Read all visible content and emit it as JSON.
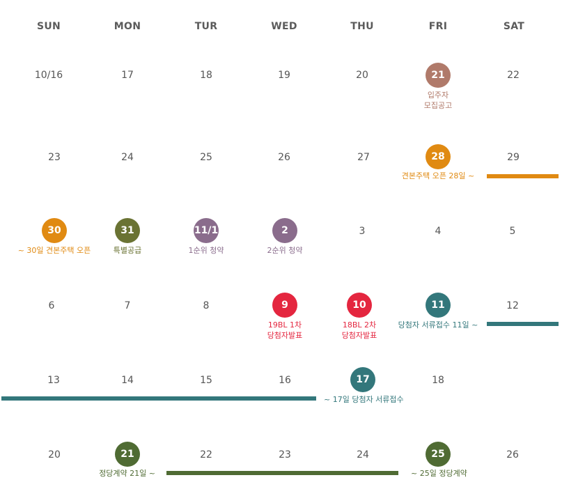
{
  "colors": {
    "brown": "#b07a6a",
    "orange": "#e08a12",
    "olive": "#6a7333",
    "purple": "#8a6c8c",
    "red": "#e4263f",
    "teal": "#33777b",
    "green": "#4f6b33"
  },
  "weekdays": [
    "SUN",
    "MON",
    "TUR",
    "WED",
    "THU",
    "FRI",
    "SAT"
  ],
  "week1": {
    "d1": "10/16",
    "d2": "17",
    "d3": "18",
    "d4": "19",
    "d5": "20",
    "d6": "21",
    "d7": "22",
    "label_fri": "입주자\n모집공고"
  },
  "week2": {
    "d1": "23",
    "d2": "24",
    "d3": "25",
    "d4": "26",
    "d5": "27",
    "d6": "28",
    "d7": "29",
    "label_fri": "견본주택 오픈 28일 ~"
  },
  "week3": {
    "d1": "30",
    "d2": "31",
    "d3": "11/1",
    "d4": "2",
    "d5": "3",
    "d6": "4",
    "d7": "5",
    "label_sun": "~ 30일 견본주택 오픈",
    "label_mon": "특별공급",
    "label_tue": "1순위 청약",
    "label_wed": "2순위 청약"
  },
  "week4": {
    "d1": "6",
    "d2": "7",
    "d3": "8",
    "d4": "9",
    "d5": "10",
    "d6": "11",
    "d7": "12",
    "label_wed": "19BL 1차\n당첨자발표",
    "label_thu": "18BL 2차\n당첨자발표",
    "label_fri": "당첨자 서류접수 11일 ~"
  },
  "week5": {
    "d1": "13",
    "d2": "14",
    "d3": "15",
    "d4": "16",
    "d5": "17",
    "d6": "18",
    "label_thu": "~ 17일 당첨자 서류접수"
  },
  "week6": {
    "d1": "20",
    "d2": "21",
    "d3": "22",
    "d4": "23",
    "d5": "24",
    "d6": "25",
    "d7": "26",
    "label_mon": "정당계약 21일 ~",
    "label_fri": "~ 25일 정당계약"
  }
}
